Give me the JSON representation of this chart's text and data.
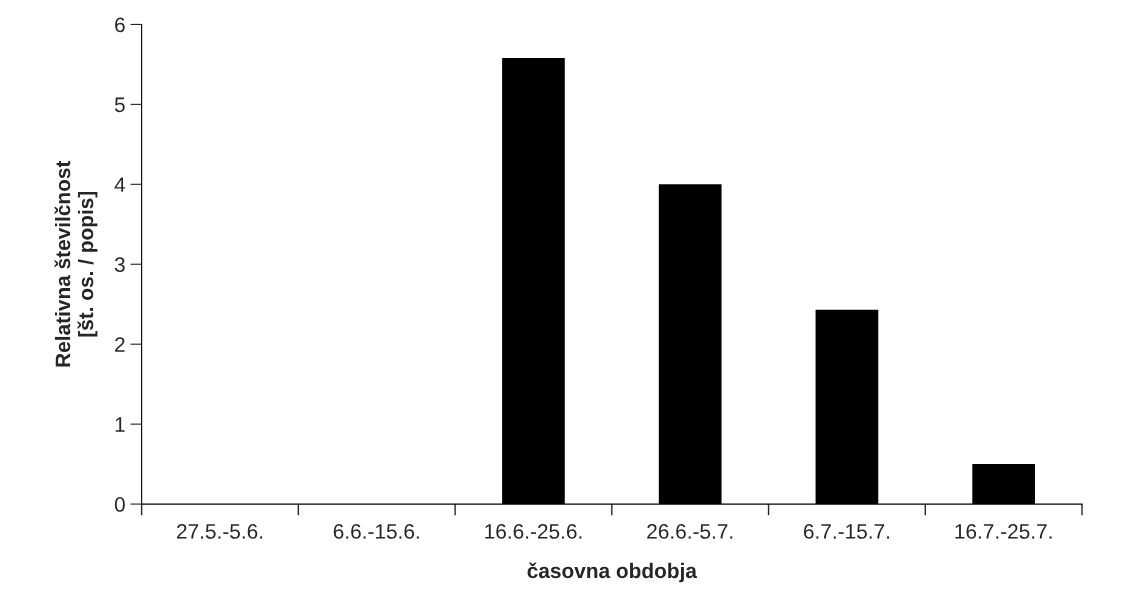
{
  "chart_data": {
    "type": "bar",
    "xlabel": "časovna obdobja",
    "ylabel": "Relativna številčnost\n[št. os. / popis]",
    "categories": [
      "27.5.-5.6.",
      "6.6.-15.6.",
      "16.6.-25.6.",
      "26.6.-5.7.",
      "6.7.-15.7.",
      "16.7.-25.7."
    ],
    "values": [
      null,
      null,
      5.58,
      4.0,
      2.43,
      0.5
    ],
    "color": "#000000",
    "ylim": [
      0,
      6
    ],
    "yticks": [
      0,
      1,
      2,
      3,
      4,
      5,
      6
    ],
    "grid": false,
    "legend": false
  }
}
